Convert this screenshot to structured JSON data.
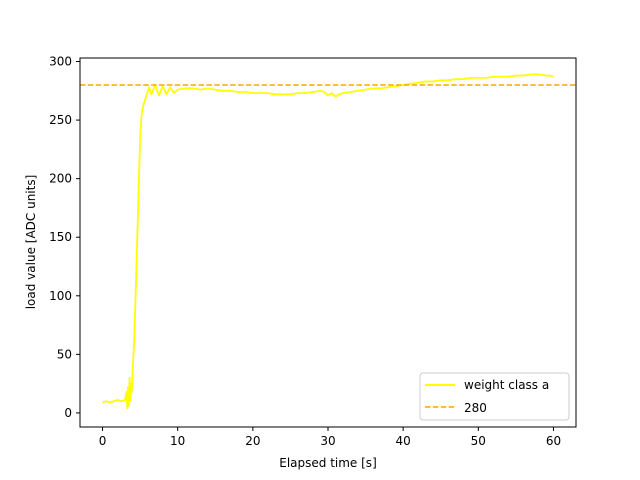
{
  "chart_data": {
    "type": "line",
    "xlabel": "Elapsed time [s]",
    "ylabel": "load value [ADC units]",
    "xlim": [
      -3,
      63
    ],
    "ylim": [
      -12,
      303
    ],
    "x_ticks": [
      0,
      10,
      20,
      30,
      40,
      50,
      60
    ],
    "y_ticks": [
      0,
      50,
      100,
      150,
      200,
      250,
      300
    ],
    "grid": false,
    "legend_position": "lower-right",
    "series": [
      {
        "name": "weight class a",
        "color": "#ffff00",
        "style": "solid",
        "x": [
          0,
          0.5,
          1,
          1.5,
          2,
          2.5,
          3,
          3.2,
          3.3,
          3.4,
          3.5,
          3.6,
          3.7,
          3.8,
          3.9,
          4.0,
          4.2,
          4.4,
          4.6,
          4.8,
          5.0,
          5.2,
          5.4,
          5.6,
          5.8,
          6.0,
          6.2,
          6.5,
          7.0,
          7.5,
          8.0,
          8.5,
          9.0,
          9.5,
          10,
          11,
          12,
          13,
          14,
          15,
          16,
          17,
          18,
          19,
          20,
          21,
          22,
          23,
          24,
          25,
          26,
          27,
          28,
          29,
          29.5,
          30,
          30.5,
          31,
          31.5,
          32,
          33,
          34,
          35,
          36,
          37,
          38,
          39,
          40,
          41,
          42,
          43,
          44,
          45,
          46,
          47,
          48,
          49,
          50,
          51,
          52,
          53,
          54,
          55,
          56,
          57,
          58,
          59,
          59.5,
          60
        ],
        "y": [
          9,
          10,
          9,
          10,
          11,
          10,
          11,
          18,
          4,
          22,
          6,
          30,
          10,
          25,
          18,
          35,
          60,
          100,
          145,
          190,
          235,
          255,
          262,
          266,
          270,
          274,
          278,
          272,
          280,
          271,
          279,
          272,
          278,
          273,
          276,
          277,
          277,
          276,
          277,
          276,
          275,
          275,
          274,
          274,
          273,
          273,
          273,
          272,
          272,
          272,
          273,
          273,
          274,
          275,
          274,
          271,
          273,
          270,
          272,
          273,
          274,
          275,
          276,
          277,
          277,
          278,
          279,
          280,
          281,
          282,
          283,
          283,
          284,
          284,
          285,
          285,
          286,
          286,
          286,
          287,
          287,
          287,
          288,
          288,
          289,
          289,
          288,
          288,
          287
        ]
      },
      {
        "name": "280",
        "color": "#ffa500",
        "style": "dashed",
        "hline": 280
      }
    ]
  }
}
